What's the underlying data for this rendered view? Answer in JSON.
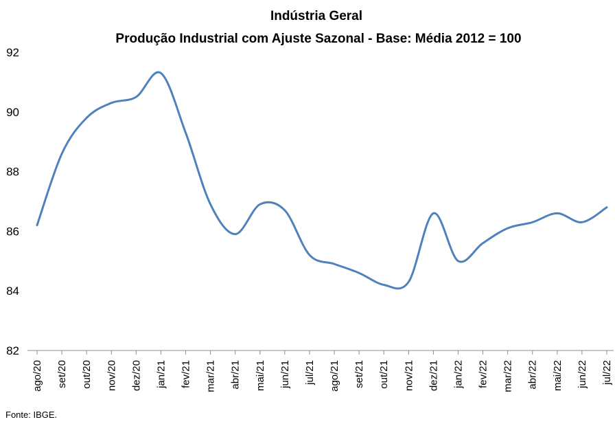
{
  "chart_data": {
    "type": "line",
    "title": "Indústria Geral",
    "subtitle": "Produção Industrial com Ajuste Sazonal - Base: Média 2012 = 100",
    "xlabel": "",
    "ylabel": "",
    "ylim": [
      82,
      92
    ],
    "yticks": [
      82,
      84,
      86,
      88,
      90,
      92
    ],
    "grid": false,
    "legend": "none",
    "line_color": "#4F81BD",
    "categories": [
      "ago/20",
      "set/20",
      "out/20",
      "nov/20",
      "dez/20",
      "jan/21",
      "fev/21",
      "mar/21",
      "abr/21",
      "mai/21",
      "jun/21",
      "jul/21",
      "ago/21",
      "set/21",
      "out/21",
      "nov/21",
      "dez/21",
      "jan/22",
      "fev/22",
      "mar/22",
      "abr/22",
      "mai/22",
      "jun/22",
      "jul/22"
    ],
    "series": [
      {
        "values": [
          86.2,
          88.6,
          89.8,
          90.3,
          90.5,
          91.3,
          89.3,
          86.9,
          85.9,
          86.9,
          86.7,
          85.2,
          84.9,
          84.6,
          84.2,
          84.3,
          86.6,
          85.0,
          85.6,
          86.1,
          86.3,
          86.6,
          86.3,
          86.8
        ]
      }
    ]
  },
  "source": "Fonte: IBGE."
}
